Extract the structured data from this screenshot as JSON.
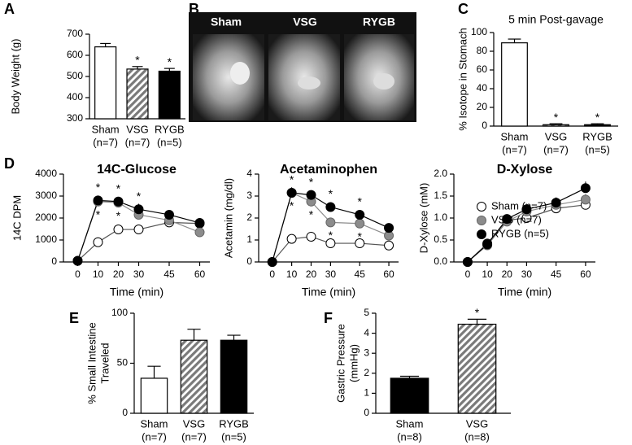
{
  "image_panel": {
    "label": "B",
    "captions": [
      "Sham",
      "VSG",
      "RYGB"
    ]
  },
  "chart_data": [
    {
      "type": "bar",
      "label": "A",
      "ylabel": "Body Weight (g)",
      "categories": [
        "Sham",
        "VSG",
        "RYGB"
      ],
      "category_notes": [
        "(n=7)",
        "(n=7)",
        "(n=5)"
      ],
      "values": [
        640,
        535,
        525
      ],
      "errors": [
        16,
        12,
        13
      ],
      "significance": [
        null,
        "*",
        "*"
      ],
      "colors": [
        "#ffffff",
        "#7a7a7a",
        "#000000"
      ],
      "hatched": [
        false,
        true,
        false
      ],
      "ylim": [
        300,
        700
      ],
      "yticks": [
        300,
        400,
        500,
        600,
        700
      ]
    },
    {
      "type": "bar",
      "label": "C",
      "title": "5 min Post-gavage",
      "ylabel": "% Isotope in Stomach",
      "categories": [
        "Sham",
        "VSG",
        "RYGB"
      ],
      "category_notes": [
        "(n=7)",
        "(n=7)",
        "(n=5)"
      ],
      "values": [
        89,
        1.5,
        1.5
      ],
      "errors": [
        4,
        1,
        1
      ],
      "significance": [
        null,
        "*",
        "*"
      ],
      "colors": [
        "#ffffff",
        "#7a7a7a",
        "#000000"
      ],
      "hatched": [
        false,
        true,
        false
      ],
      "ylim": [
        0,
        100
      ],
      "yticks": [
        0,
        20,
        40,
        60,
        80,
        100
      ]
    },
    {
      "type": "line",
      "label": "D",
      "title": "14C-Glucose",
      "ylabel": "14C DPM",
      "xlabel": "Time (min)",
      "x": [
        0,
        10,
        20,
        30,
        45,
        60
      ],
      "xlim": [
        -7,
        65
      ],
      "xticks": [
        0,
        10,
        20,
        30,
        45,
        60
      ],
      "ylim": [
        0,
        4000
      ],
      "yticks": [
        0,
        1000,
        2000,
        3000,
        4000
      ],
      "series": [
        {
          "name": "Sham (n=7)",
          "color": "#ffffff",
          "values": [
            50,
            900,
            1480,
            1480,
            1800,
            1750
          ],
          "errors": [
            0,
            150,
            60,
            120,
            100,
            80
          ],
          "significance": [
            null,
            null,
            null,
            null,
            null,
            null
          ]
        },
        {
          "name": "VSG (n=7)",
          "color": "#8c8c8c",
          "values": [
            50,
            2750,
            2700,
            2150,
            1900,
            1350
          ],
          "errors": [
            0,
            150,
            120,
            150,
            120,
            100
          ],
          "significance": [
            null,
            "*",
            "*",
            null,
            null,
            null
          ],
          "significance_position": "below"
        },
        {
          "name": "RYGB (n=5)",
          "color": "#000000",
          "values": [
            50,
            2800,
            2750,
            2400,
            2150,
            1780
          ],
          "errors": [
            0,
            180,
            150,
            250,
            150,
            200
          ],
          "significance": [
            null,
            "*",
            "*",
            "*",
            null,
            null
          ],
          "significance_position": "above"
        }
      ]
    },
    {
      "type": "line",
      "title": "Acetaminophen",
      "ylabel": "Acetamin (mg/dl)",
      "xlabel": "Time (min)",
      "x": [
        0,
        10,
        20,
        30,
        45,
        60
      ],
      "xlim": [
        -7,
        65
      ],
      "xticks": [
        0,
        10,
        20,
        30,
        45,
        60
      ],
      "ylim": [
        0,
        4
      ],
      "yticks": [
        0,
        1,
        2,
        3,
        4
      ],
      "series": [
        {
          "name": "Sham (n=7)",
          "color": "#ffffff",
          "values": [
            0,
            1.05,
            1.15,
            0.85,
            0.85,
            0.75
          ],
          "errors": [
            0,
            0.15,
            0.08,
            0.05,
            0.06,
            0.05
          ],
          "significance": [
            null,
            null,
            null,
            null,
            null,
            null
          ]
        },
        {
          "name": "VSG (n=7)",
          "color": "#8c8c8c",
          "values": [
            0,
            3.15,
            2.75,
            1.8,
            1.75,
            1.2
          ],
          "errors": [
            0,
            0.2,
            0.15,
            0.15,
            0.12,
            0.1
          ],
          "significance": [
            null,
            "*",
            "*",
            "*",
            "*",
            null
          ],
          "significance_position": "below"
        },
        {
          "name": "RYGB (n=5)",
          "color": "#000000",
          "values": [
            0,
            3.15,
            3.05,
            2.5,
            2.15,
            1.55
          ],
          "errors": [
            0,
            0.25,
            0.15,
            0.12,
            0.12,
            0.1
          ],
          "significance": [
            null,
            "*",
            "*",
            "*",
            "*",
            null
          ],
          "significance_position": "above"
        }
      ]
    },
    {
      "type": "line",
      "title": "D-Xylose",
      "ylabel": "D-Xylose (mM)",
      "xlabel": "Time (min)",
      "x": [
        0,
        10,
        20,
        30,
        45,
        60
      ],
      "xlim": [
        -7,
        65
      ],
      "xticks": [
        0,
        10,
        20,
        30,
        45,
        60
      ],
      "ylim": [
        0,
        2
      ],
      "yticks": [
        {
          "value": 0,
          "label": "0.0"
        },
        0.5,
        {
          "value": 1,
          "label": "1.0"
        },
        1.5,
        {
          "value": 2,
          "label": "2.0"
        }
      ],
      "legend": "lower right",
      "series": [
        {
          "name": "Sham (n=7)",
          "color": "#ffffff",
          "values": [
            0,
            0.42,
            0.95,
            1.0,
            1.22,
            1.3
          ],
          "errors": [
            0,
            0.05,
            0.06,
            0.06,
            0.08,
            0.08
          ],
          "significance": [
            null,
            null,
            null,
            null,
            null,
            null
          ]
        },
        {
          "name": "VSG (n=7)",
          "color": "#8c8c8c",
          "values": [
            0,
            0.38,
            0.92,
            1.15,
            1.3,
            1.42
          ],
          "errors": [
            0,
            0.05,
            0.08,
            0.08,
            0.1,
            0.12
          ],
          "significance": [
            null,
            null,
            null,
            null,
            null,
            null
          ]
        },
        {
          "name": "RYGB (n=5)",
          "color": "#000000",
          "values": [
            0,
            0.4,
            0.98,
            1.2,
            1.35,
            1.68
          ],
          "errors": [
            0,
            0.05,
            0.08,
            0.1,
            0.12,
            0.15
          ],
          "significance": [
            null,
            null,
            null,
            null,
            null,
            null
          ]
        }
      ]
    },
    {
      "type": "bar",
      "label": "E",
      "ylabel": [
        "% Small Intestine",
        "Traveled"
      ],
      "categories": [
        "Sham",
        "VSG",
        "RYGB"
      ],
      "category_notes": [
        "(n=7)",
        "(n=7)",
        "(n=5)"
      ],
      "values": [
        35,
        73,
        73
      ],
      "errors": [
        12,
        11,
        5
      ],
      "significance": [
        null,
        null,
        null
      ],
      "colors": [
        "#ffffff",
        "#7a7a7a",
        "#000000"
      ],
      "hatched": [
        false,
        true,
        false
      ],
      "ylim": [
        0,
        100
      ],
      "yticks": [
        0,
        50,
        100
      ]
    },
    {
      "type": "bar",
      "label": "F",
      "ylabel": [
        "Gastric Pressure",
        "(mmHg)"
      ],
      "categories": [
        "Sham",
        "VSG"
      ],
      "category_notes": [
        "(n=8)",
        "(n=8)"
      ],
      "values": [
        1.75,
        4.45
      ],
      "errors": [
        0.1,
        0.25
      ],
      "significance": [
        null,
        "*"
      ],
      "colors": [
        "#000000",
        "#7a7a7a"
      ],
      "hatched": [
        false,
        true
      ],
      "ylim": [
        0,
        5
      ],
      "yticks": [
        0,
        1,
        2,
        3,
        4,
        5
      ]
    }
  ]
}
